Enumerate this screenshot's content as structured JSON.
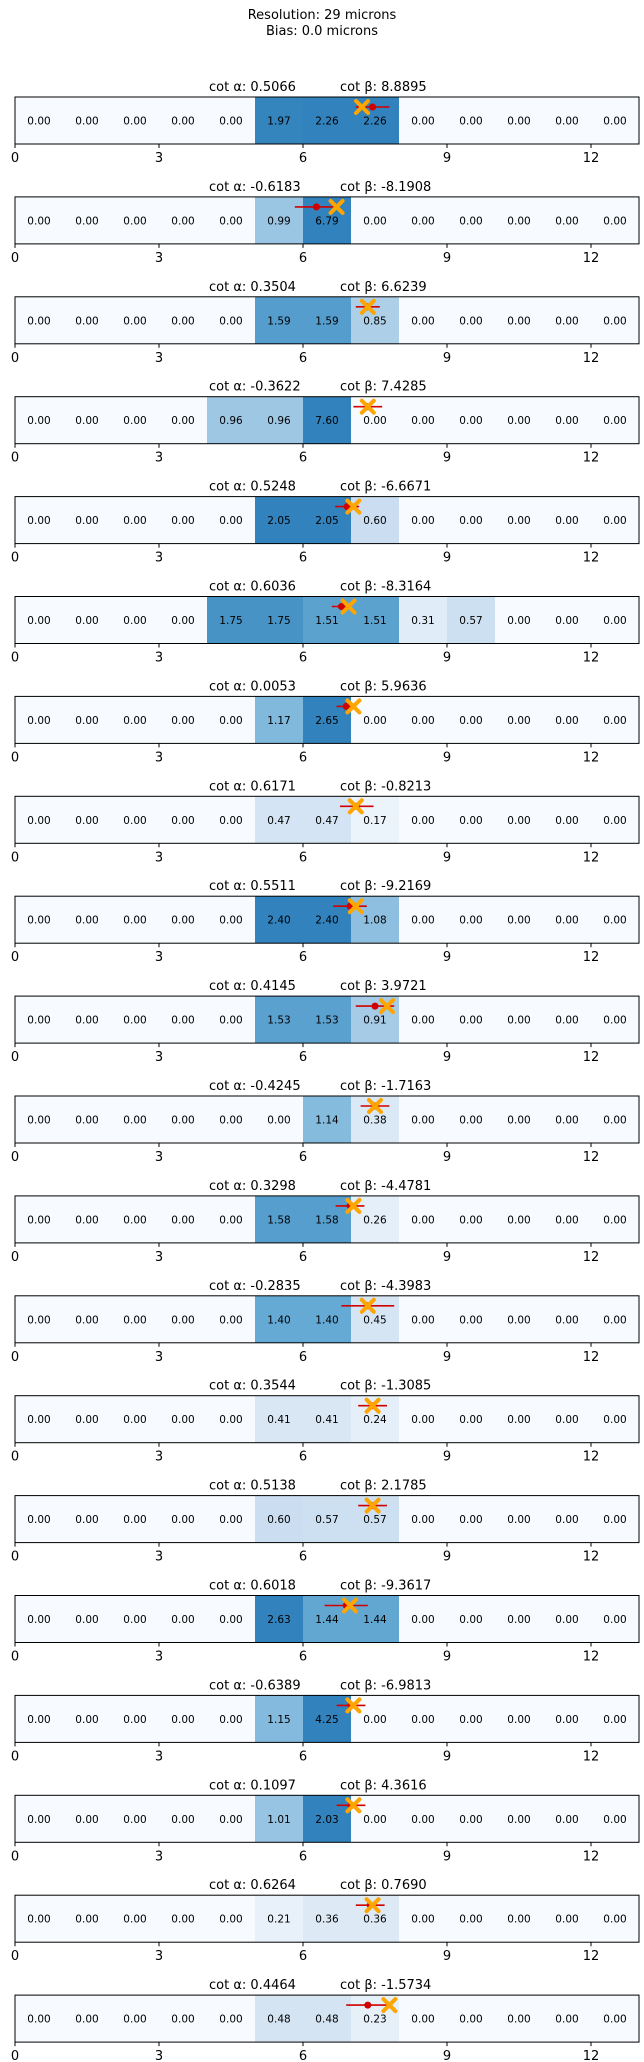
{
  "header": {
    "line1": "Resolution: 29 microns",
    "line2": "Bias: 0.0 microns"
  },
  "x_ticks": [
    "0",
    "3",
    "6",
    "9",
    "12"
  ],
  "chart_data": [
    {
      "type": "heatmap",
      "cot_alpha": "0.5066",
      "cot_beta": "8.8895",
      "values": [
        0,
        0,
        0,
        0,
        0,
        1.97,
        2.26,
        2.26,
        0,
        0,
        0,
        0,
        0
      ],
      "true_x": 7.23,
      "pred_x": 7.45,
      "err": 0.35
    },
    {
      "type": "heatmap",
      "cot_alpha": "-0.6183",
      "cot_beta": "-8.1908",
      "values": [
        0,
        0,
        0,
        0,
        0,
        0.99,
        6.79,
        0,
        0,
        0,
        0,
        0,
        0
      ],
      "true_x": 6.7,
      "pred_x": 6.28,
      "err": 0.45
    },
    {
      "type": "heatmap",
      "cot_alpha": "0.3504",
      "cot_beta": "6.6239",
      "values": [
        0,
        0,
        0,
        0,
        0,
        1.59,
        1.59,
        0.85,
        0,
        0,
        0,
        0,
        0
      ],
      "true_x": 7.35,
      "pred_x": 7.35,
      "err": 0.25
    },
    {
      "type": "heatmap",
      "cot_alpha": "-0.3622",
      "cot_beta": "7.4285",
      "values": [
        0,
        0,
        0,
        0,
        0.96,
        0.96,
        7.6,
        0,
        0,
        0,
        0,
        0,
        0
      ],
      "true_x": 7.35,
      "pred_x": 7.35,
      "err": 0.3
    },
    {
      "type": "heatmap",
      "cot_alpha": "0.5248",
      "cot_beta": "-6.6671",
      "values": [
        0,
        0,
        0,
        0,
        0,
        2.05,
        2.05,
        0.6,
        0,
        0,
        0,
        0,
        0
      ],
      "true_x": 7.05,
      "pred_x": 6.92,
      "err": 0.25
    },
    {
      "type": "heatmap",
      "cot_alpha": "0.6036",
      "cot_beta": "-8.3164",
      "values": [
        0,
        0,
        0,
        0,
        1.75,
        1.75,
        1.51,
        1.51,
        0.31,
        0.57,
        0,
        0,
        0
      ],
      "true_x": 6.95,
      "pred_x": 6.8,
      "err": 0.2
    },
    {
      "type": "heatmap",
      "cot_alpha": "0.0053",
      "cot_beta": "5.9636",
      "values": [
        0,
        0,
        0,
        0,
        0,
        1.17,
        2.65,
        0,
        0,
        0,
        0,
        0,
        0
      ],
      "true_x": 7.05,
      "pred_x": 6.9,
      "err": 0.2
    },
    {
      "type": "heatmap",
      "cot_alpha": "0.6171",
      "cot_beta": "-0.8213",
      "values": [
        0,
        0,
        0,
        0,
        0,
        0.47,
        0.47,
        0.17,
        0,
        0,
        0,
        0,
        0
      ],
      "true_x": 7.1,
      "pred_x": 7.12,
      "err": 0.35
    },
    {
      "type": "heatmap",
      "cot_alpha": "0.5511",
      "cot_beta": "-9.2169",
      "values": [
        0,
        0,
        0,
        0,
        0,
        2.4,
        2.4,
        1.08,
        0,
        0,
        0,
        0,
        0
      ],
      "true_x": 7.1,
      "pred_x": 6.98,
      "err": 0.35
    },
    {
      "type": "heatmap",
      "cot_alpha": "0.4145",
      "cot_beta": "3.9721",
      "values": [
        0,
        0,
        0,
        0,
        0,
        1.53,
        1.53,
        0.91,
        0,
        0,
        0,
        0,
        0
      ],
      "true_x": 7.75,
      "pred_x": 7.5,
      "err": 0.4
    },
    {
      "type": "heatmap",
      "cot_alpha": "-0.4245",
      "cot_beta": "-1.7163",
      "values": [
        0,
        0,
        0,
        0,
        0,
        0,
        1.14,
        0.38,
        0,
        0,
        0,
        0,
        0
      ],
      "true_x": 7.5,
      "pred_x": 7.5,
      "err": 0.3
    },
    {
      "type": "heatmap",
      "cot_alpha": "0.3298",
      "cot_beta": "-4.4781",
      "values": [
        0,
        0,
        0,
        0,
        0,
        1.58,
        1.58,
        0.26,
        0,
        0,
        0,
        0,
        0
      ],
      "true_x": 7.05,
      "pred_x": 6.98,
      "err": 0.3
    },
    {
      "type": "heatmap",
      "cot_alpha": "-0.2835",
      "cot_beta": "-4.3983",
      "values": [
        0,
        0,
        0,
        0,
        0,
        1.4,
        1.4,
        0.45,
        0,
        0,
        0,
        0,
        0
      ],
      "true_x": 7.35,
      "pred_x": 7.35,
      "err": 0.55
    },
    {
      "type": "heatmap",
      "cot_alpha": "0.3544",
      "cot_beta": "-1.3085",
      "values": [
        0,
        0,
        0,
        0,
        0,
        0.41,
        0.41,
        0.24,
        0,
        0,
        0,
        0,
        0
      ],
      "true_x": 7.45,
      "pred_x": 7.45,
      "err": 0.3
    },
    {
      "type": "heatmap",
      "cot_alpha": "0.5138",
      "cot_beta": "2.1785",
      "values": [
        0,
        0,
        0,
        0,
        0,
        0.6,
        0.57,
        0.57,
        0,
        0,
        0,
        0,
        0
      ],
      "true_x": 7.45,
      "pred_x": 7.45,
      "err": 0.3
    },
    {
      "type": "heatmap",
      "cot_alpha": "0.6018",
      "cot_beta": "-9.3617",
      "values": [
        0,
        0,
        0,
        0,
        0,
        2.63,
        1.44,
        1.44,
        0,
        0,
        0,
        0,
        0
      ],
      "true_x": 6.98,
      "pred_x": 6.9,
      "err": 0.45
    },
    {
      "type": "heatmap",
      "cot_alpha": "-0.6389",
      "cot_beta": "-6.9813",
      "values": [
        0,
        0,
        0,
        0,
        0,
        1.15,
        4.25,
        0,
        0,
        0,
        0,
        0,
        0
      ],
      "true_x": 7.05,
      "pred_x": 7.0,
      "err": 0.3
    },
    {
      "type": "heatmap",
      "cot_alpha": "0.1097",
      "cot_beta": "4.3616",
      "values": [
        0,
        0,
        0,
        0,
        0,
        1.01,
        2.03,
        0,
        0,
        0,
        0,
        0,
        0
      ],
      "true_x": 7.05,
      "pred_x": 7.0,
      "err": 0.3
    },
    {
      "type": "heatmap",
      "cot_alpha": "0.6264",
      "cot_beta": "0.7690",
      "values": [
        0,
        0,
        0,
        0,
        0,
        0.21,
        0.36,
        0.36,
        0,
        0,
        0,
        0,
        0
      ],
      "true_x": 7.45,
      "pred_x": 7.4,
      "err": 0.3
    },
    {
      "type": "heatmap",
      "cot_alpha": "0.4464",
      "cot_beta": "-1.5734",
      "values": [
        0,
        0,
        0,
        0,
        0,
        0.48,
        0.48,
        0.23,
        0,
        0,
        0,
        0,
        0
      ],
      "true_x": 7.8,
      "pred_x": 7.35,
      "err": 0.45
    }
  ],
  "colors": {
    "marker_true": "#ffa500",
    "marker_pred": "#d00000"
  }
}
